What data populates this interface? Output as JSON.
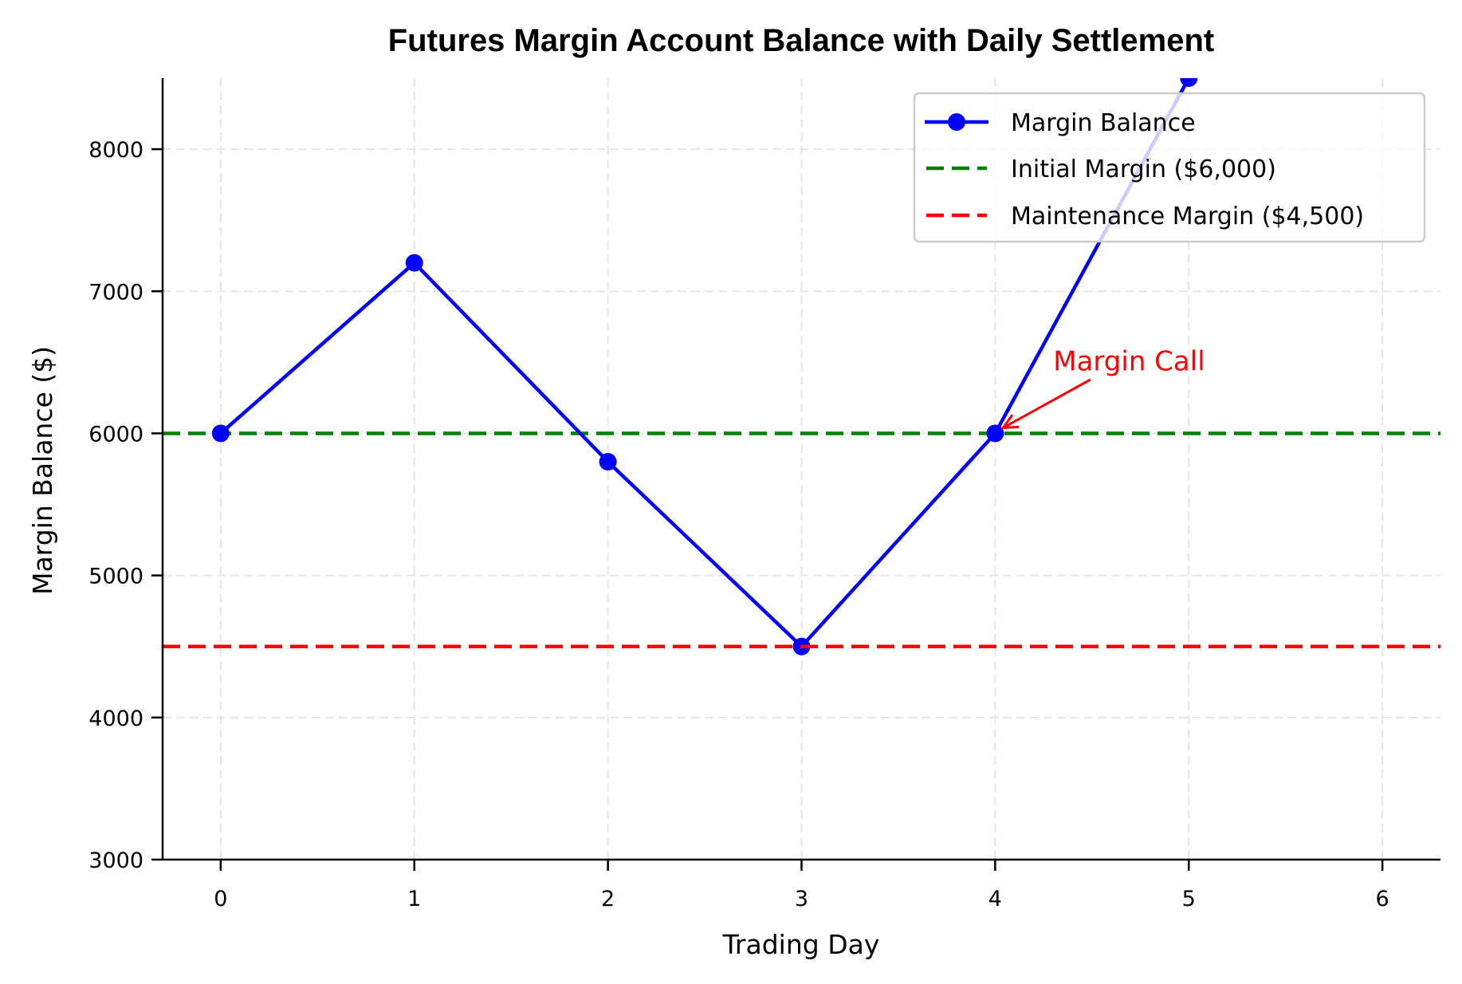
{
  "chart_data": {
    "type": "line",
    "title": "Futures Margin Account Balance with Daily Settlement",
    "xlabel": "Trading Day",
    "ylabel": "Margin Balance ($)",
    "xlim": [
      -0.3,
      6.3
    ],
    "ylim": [
      3000,
      8500
    ],
    "xticks": [
      0,
      1,
      2,
      3,
      4,
      5,
      6
    ],
    "yticks": [
      3000,
      4000,
      5000,
      6000,
      7000,
      8000
    ],
    "grid": true,
    "legend_position": "upper right",
    "series": [
      {
        "name": "Margin Balance",
        "style": "solid-with-markers",
        "color": "#0000ff",
        "x": [
          0,
          1,
          2,
          3,
          4,
          5
        ],
        "values": [
          6000,
          7200,
          5800,
          4500,
          6000,
          8500
        ]
      },
      {
        "name": "Initial Margin ($6,000)",
        "style": "dashed-horizontal",
        "color": "#008000",
        "y": 6000
      },
      {
        "name": "Maintenance Margin ($4,500)",
        "style": "dashed-horizontal",
        "color": "#ff0000",
        "y": 4500
      }
    ],
    "annotations": [
      {
        "text": "Margin Call",
        "color": "#ff0000",
        "xy": [
          4,
          6000
        ],
        "xytext": [
          4.3,
          6500
        ]
      }
    ]
  },
  "colors": {
    "balance": "#0000ff",
    "initial": "#008000",
    "maintenance": "#ff0000",
    "grid": "#e6e6e6",
    "legend_border": "#cccccc"
  }
}
